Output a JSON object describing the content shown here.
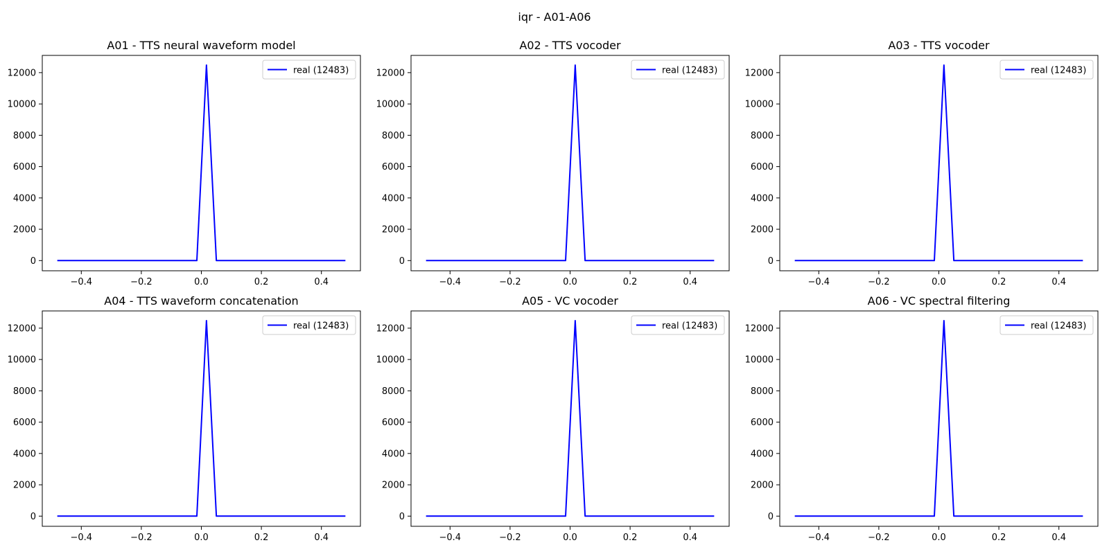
{
  "figure": {
    "suptitle": "iqr - A01-A06"
  },
  "chart_data": [
    {
      "type": "line",
      "title": "A01 - TTS neural waveform model",
      "x": [
        -0.48,
        -0.015,
        0.017,
        0.05,
        0.48
      ],
      "series": [
        {
          "name": "real (12483)",
          "color": "#0000ff",
          "values": [
            0,
            0,
            12483,
            0,
            0
          ]
        }
      ],
      "xlim": [
        -0.53,
        0.53
      ],
      "ylim": [
        -650,
        13100
      ],
      "xticks": [
        -0.4,
        -0.2,
        0.0,
        0.2,
        0.4
      ],
      "xtick_labels": [
        "−0.4",
        "−0.2",
        "0.0",
        "0.2",
        "0.4"
      ],
      "yticks": [
        0,
        2000,
        4000,
        6000,
        8000,
        10000,
        12000
      ],
      "ytick_labels": [
        "0",
        "2000",
        "4000",
        "6000",
        "8000",
        "10000",
        "12000"
      ],
      "legend_position": "upper right"
    },
    {
      "type": "line",
      "title": "A02 - TTS vocoder",
      "x": [
        -0.48,
        -0.015,
        0.017,
        0.05,
        0.48
      ],
      "series": [
        {
          "name": "real (12483)",
          "color": "#0000ff",
          "values": [
            0,
            0,
            12483,
            0,
            0
          ]
        }
      ],
      "xlim": [
        -0.53,
        0.53
      ],
      "ylim": [
        -650,
        13100
      ],
      "xticks": [
        -0.4,
        -0.2,
        0.0,
        0.2,
        0.4
      ],
      "xtick_labels": [
        "−0.4",
        "−0.2",
        "0.0",
        "0.2",
        "0.4"
      ],
      "yticks": [
        0,
        2000,
        4000,
        6000,
        8000,
        10000,
        12000
      ],
      "ytick_labels": [
        "0",
        "2000",
        "4000",
        "6000",
        "8000",
        "10000",
        "12000"
      ],
      "legend_position": "upper right"
    },
    {
      "type": "line",
      "title": "A03 - TTS vocoder",
      "x": [
        -0.48,
        -0.015,
        0.017,
        0.05,
        0.48
      ],
      "series": [
        {
          "name": "real (12483)",
          "color": "#0000ff",
          "values": [
            0,
            0,
            12483,
            0,
            0
          ]
        }
      ],
      "xlim": [
        -0.53,
        0.53
      ],
      "ylim": [
        -650,
        13100
      ],
      "xticks": [
        -0.4,
        -0.2,
        0.0,
        0.2,
        0.4
      ],
      "xtick_labels": [
        "−0.4",
        "−0.2",
        "0.0",
        "0.2",
        "0.4"
      ],
      "yticks": [
        0,
        2000,
        4000,
        6000,
        8000,
        10000,
        12000
      ],
      "ytick_labels": [
        "0",
        "2000",
        "4000",
        "6000",
        "8000",
        "10000",
        "12000"
      ],
      "legend_position": "upper right"
    },
    {
      "type": "line",
      "title": "A04 - TTS waveform concatenation",
      "x": [
        -0.48,
        -0.015,
        0.017,
        0.05,
        0.48
      ],
      "series": [
        {
          "name": "real (12483)",
          "color": "#0000ff",
          "values": [
            0,
            0,
            12483,
            0,
            0
          ]
        }
      ],
      "xlim": [
        -0.53,
        0.53
      ],
      "ylim": [
        -650,
        13100
      ],
      "xticks": [
        -0.4,
        -0.2,
        0.0,
        0.2,
        0.4
      ],
      "xtick_labels": [
        "−0.4",
        "−0.2",
        "0.0",
        "0.2",
        "0.4"
      ],
      "yticks": [
        0,
        2000,
        4000,
        6000,
        8000,
        10000,
        12000
      ],
      "ytick_labels": [
        "0",
        "2000",
        "4000",
        "6000",
        "8000",
        "10000",
        "12000"
      ],
      "legend_position": "upper right"
    },
    {
      "type": "line",
      "title": "A05 - VC vocoder",
      "x": [
        -0.48,
        -0.015,
        0.017,
        0.05,
        0.48
      ],
      "series": [
        {
          "name": "real (12483)",
          "color": "#0000ff",
          "values": [
            0,
            0,
            12483,
            0,
            0
          ]
        }
      ],
      "xlim": [
        -0.53,
        0.53
      ],
      "ylim": [
        -650,
        13100
      ],
      "xticks": [
        -0.4,
        -0.2,
        0.0,
        0.2,
        0.4
      ],
      "xtick_labels": [
        "−0.4",
        "−0.2",
        "0.0",
        "0.2",
        "0.4"
      ],
      "yticks": [
        0,
        2000,
        4000,
        6000,
        8000,
        10000,
        12000
      ],
      "ytick_labels": [
        "0",
        "2000",
        "4000",
        "6000",
        "8000",
        "10000",
        "12000"
      ],
      "legend_position": "upper right"
    },
    {
      "type": "line",
      "title": "A06 - VC spectral filtering",
      "x": [
        -0.48,
        -0.015,
        0.017,
        0.05,
        0.48
      ],
      "series": [
        {
          "name": "real (12483)",
          "color": "#0000ff",
          "values": [
            0,
            0,
            12483,
            0,
            0
          ]
        }
      ],
      "xlim": [
        -0.53,
        0.53
      ],
      "ylim": [
        -650,
        13100
      ],
      "xticks": [
        -0.4,
        -0.2,
        0.0,
        0.2,
        0.4
      ],
      "xtick_labels": [
        "−0.4",
        "−0.2",
        "0.0",
        "0.2",
        "0.4"
      ],
      "yticks": [
        0,
        2000,
        4000,
        6000,
        8000,
        10000,
        12000
      ],
      "ytick_labels": [
        "0",
        "2000",
        "4000",
        "6000",
        "8000",
        "10000",
        "12000"
      ],
      "legend_position": "upper right"
    }
  ]
}
